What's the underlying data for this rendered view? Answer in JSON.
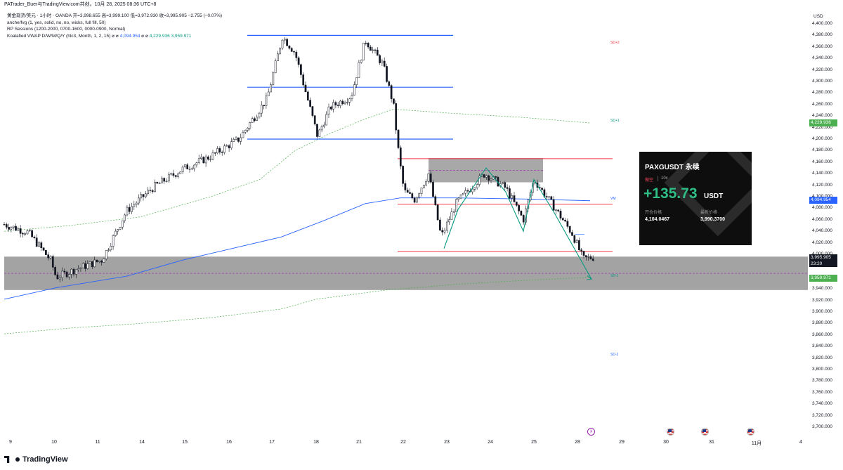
{
  "topbar": {
    "text": "PATrader_Buer与TradingView.com共创。10月 28, 2025 08:36 UTC+8"
  },
  "legend": {
    "symbol_line": "黄金现货/美元 · 1小时 · OANDA",
    "ohlc": "开=3,998.655  高=3,999.100  低=3,972.930  收=3,995.905  −2.755 (−0.07%)",
    "indicator_1": "anche/fvg (1, yes, solid, no, no, wicks, full fill, 50)",
    "indicator_2": "RP Sessions (1200-2000, 0700-1600, 0000-0900, Normal)",
    "indicator_3_name": "Koalafied VWAP D/W/M/Q/Y  (hlc3, Month, 1, 2, 15)",
    "indicator_3_blue": "4,094.954",
    "indicator_3_green": "4,229.936",
    "indicator_3_green2": "3,959.971",
    "indicator_3_sym": "⌀"
  },
  "price_axis": {
    "currency": "USD",
    "ticks": [
      "4,400.000",
      "4,380.000",
      "4,360.000",
      "4,340.000",
      "4,320.000",
      "4,300.000",
      "4,280.000",
      "4,260.000",
      "4,240.000",
      "4,220.000",
      "4,200.000",
      "4,180.000",
      "4,160.000",
      "4,140.000",
      "4,120.000",
      "4,100.000",
      "4,080.000",
      "4,060.000",
      "4,040.000",
      "4,020.000",
      "4,000.000",
      "3,980.000",
      "3,960.000",
      "3,940.000",
      "3,920.000",
      "3,900.000",
      "3,880.000",
      "3,860.000",
      "3,840.000",
      "3,820.000",
      "3,800.000",
      "3,780.000",
      "3,760.000",
      "3,740.000",
      "3,720.000",
      "3,700.000"
    ],
    "badge_green_top": "4,229.936",
    "badge_blue": "4,094.954",
    "badge_current": "3,995.905",
    "badge_countdown": "23:20",
    "badge_green_bottom": "3,959.971"
  },
  "time_axis": {
    "labels": [
      "9",
      "10",
      "11",
      "14",
      "15",
      "16",
      "17",
      "18",
      "21",
      "22",
      "23",
      "24",
      "25",
      "28",
      "29",
      "30",
      "31",
      "11月",
      "4"
    ]
  },
  "vwap_labels": {
    "sd_plus2": "SD+2",
    "sd_plus1": "SD+1",
    "vwap": "VM",
    "sd_minus1": "SD-1",
    "sd_minus2": "SD-2"
  },
  "pnl_card": {
    "symbol": "PAXGUSDT 永续",
    "side": "做空",
    "leverage": "10x",
    "pnl": "+135.73",
    "unit": "USDT",
    "entry_label": "开仓价格",
    "entry_value": "4,104.0467",
    "last_label": "最新价格",
    "last_value": "3,990.3700"
  },
  "footer": {
    "brand": "TradingView"
  },
  "colors": {
    "bull": "#131722",
    "bear": "#131722",
    "blue_line": "#2962ff",
    "red_line": "#f23645",
    "green": "#4caf50",
    "teal": "#089981",
    "zone": "#9e9e9e",
    "vwap": "#2962ff",
    "purple": "#9c27b0"
  },
  "chart_data": {
    "type": "candlestick",
    "ylim": [
      3700,
      4400
    ],
    "annotations": {
      "horizontal_lines_blue": [
        4380,
        4290,
        4200
      ],
      "horizontal_lines_red": [
        4166,
        4087,
        4005
      ],
      "gray_zones": [
        [
          3938,
          3996
        ],
        [
          4125,
          4167
        ]
      ]
    }
  }
}
